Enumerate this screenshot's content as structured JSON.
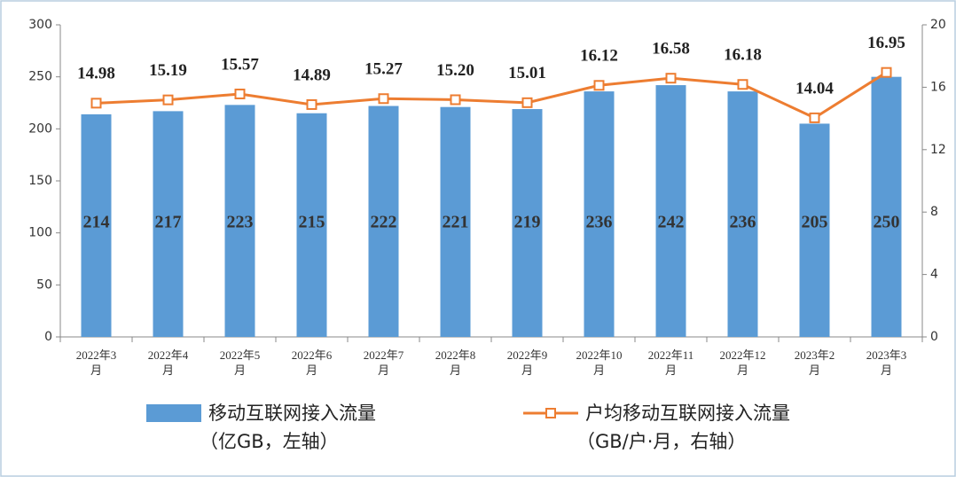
{
  "chart_data": {
    "type": "bar-line",
    "categories": [
      "2022年3月",
      "2022年4月",
      "2022年5月",
      "2022年6月",
      "2022年7月",
      "2022年8月",
      "2022年9月",
      "2022年10月",
      "2022年11月",
      "2022年12月",
      "2023年2月",
      "2023年3月"
    ],
    "series": [
      {
        "name": "移动互联网接入流量",
        "unit": "（亿GB，左轴）",
        "type": "bar",
        "color": "#5b9bd5",
        "values": [
          214,
          217,
          223,
          215,
          222,
          221,
          219,
          236,
          242,
          236,
          205,
          250
        ]
      },
      {
        "name": "户均移动互联网接入流量",
        "unit": "（GB/户·月，右轴）",
        "type": "line",
        "axis": "y2",
        "color": "#ed7d31",
        "values": [
          14.98,
          15.19,
          15.57,
          14.89,
          15.27,
          15.2,
          15.01,
          16.12,
          16.58,
          16.18,
          14.04,
          16.95
        ],
        "value_labels": [
          "14.98",
          "15.19",
          "15.57",
          "14.89",
          "15.27",
          "15.20",
          "15.01",
          "16.12",
          "16.58",
          "16.18",
          "14.04",
          "16.95"
        ]
      }
    ],
    "ylim": [
      0,
      300
    ],
    "yticks": [
      0,
      50,
      100,
      150,
      200,
      250,
      300
    ],
    "y2lim": [
      0,
      20
    ],
    "y2ticks": [
      0,
      4,
      8,
      12,
      16,
      20
    ]
  }
}
